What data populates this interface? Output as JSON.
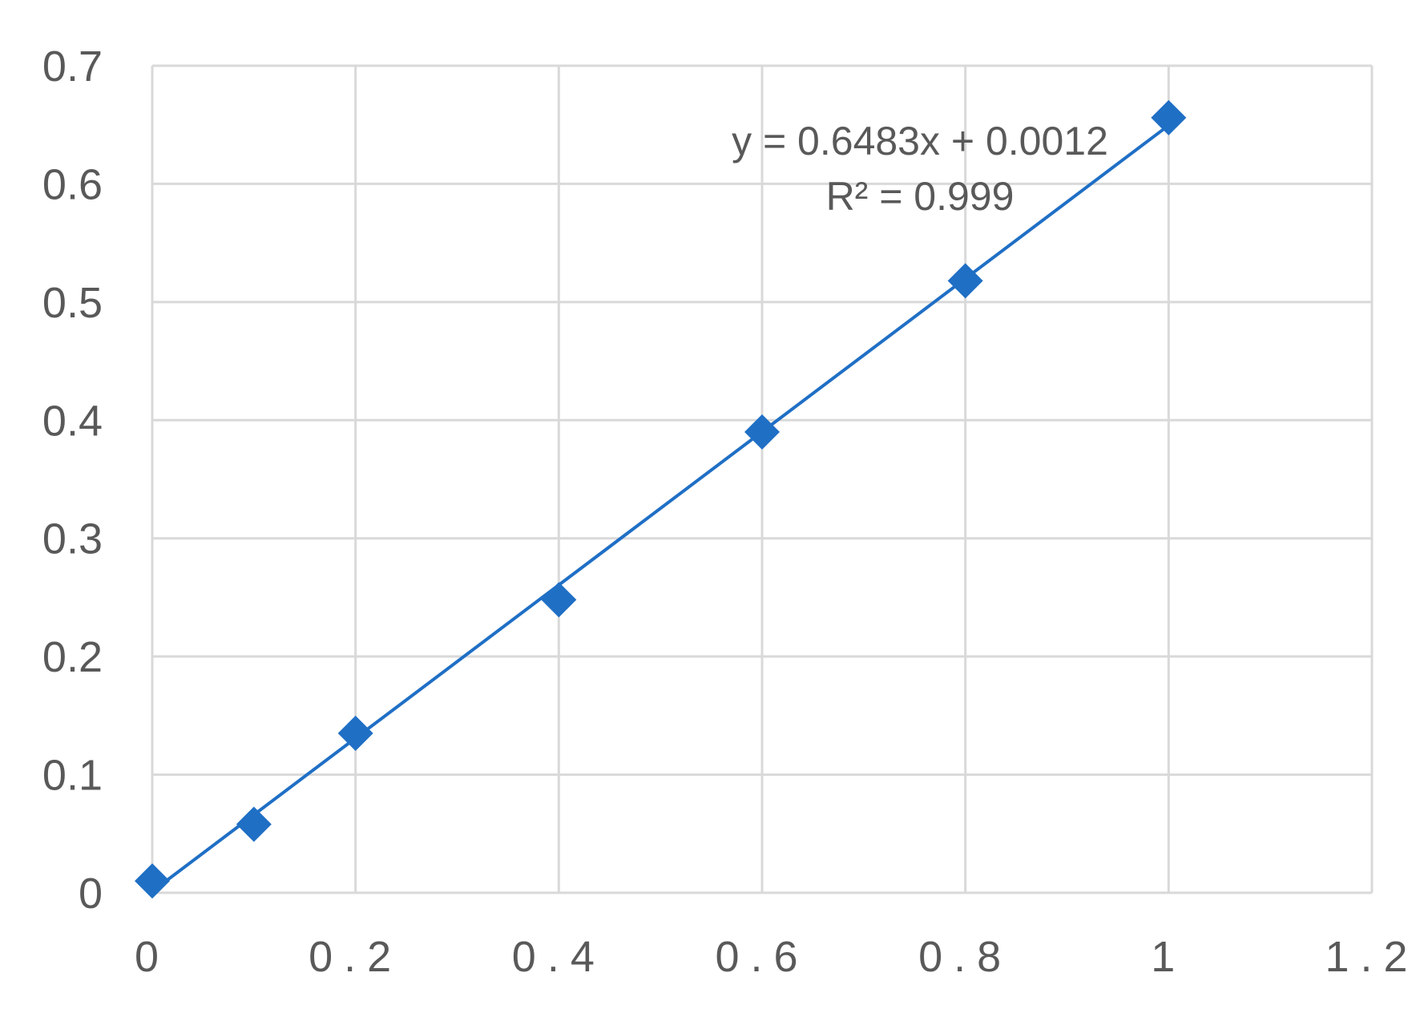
{
  "chart_data": {
    "type": "scatter",
    "x_ticks": [
      "0",
      "0.2",
      "0.4",
      "0.6",
      "0.8",
      "1",
      "1.2"
    ],
    "y_ticks": [
      "0",
      "0.1",
      "0.2",
      "0.3",
      "0.4",
      "0.5",
      "0.6",
      "0.7"
    ],
    "xlim": [
      0,
      1.2
    ],
    "ylim": [
      0,
      0.7
    ],
    "grid": true,
    "series": [
      {
        "x": [
          0,
          0.1,
          0.2,
          0.4,
          0.6,
          0.8,
          1.0
        ],
        "y": [
          0.01,
          0.058,
          0.135,
          0.248,
          0.39,
          0.518,
          0.656
        ],
        "marker": "diamond",
        "color": "#1f6fc5"
      }
    ],
    "trendline": {
      "slope": 0.6483,
      "intercept": 0.0012,
      "x_range": [
        0,
        1.0
      ],
      "color": "#1f6fc5",
      "equation_label": "y = 0.6483x + 0.0012",
      "r2_label": "R² = 0.999"
    },
    "colors": {
      "grid": "#d9d9d9",
      "text": "#595959",
      "series": "#1f6fc5"
    }
  }
}
